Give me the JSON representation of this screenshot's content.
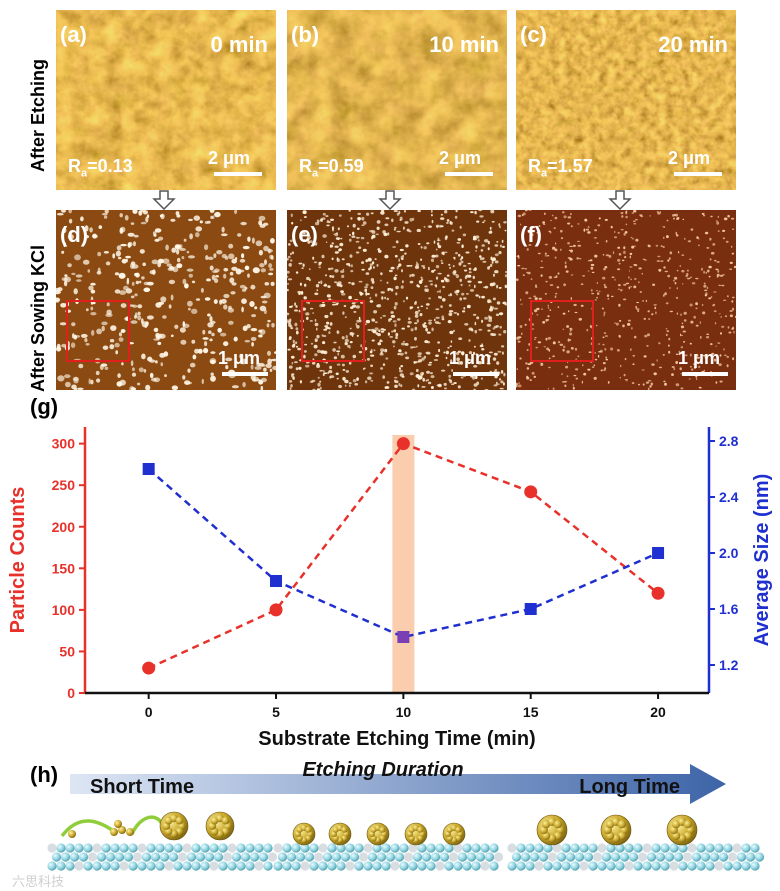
{
  "afm": {
    "row_after_etching": "After Etching",
    "row_after_sowing": "After Sowing KCl",
    "top": [
      {
        "label": "(a)",
        "time": "0 min",
        "ra": "0.13",
        "scale": "2 μm"
      },
      {
        "label": "(b)",
        "time": "10 min",
        "ra": "0.59",
        "scale": "2 μm"
      },
      {
        "label": "(c)",
        "time": "20 min",
        "ra": "1.57",
        "scale": "2 μm"
      }
    ],
    "bottom": [
      {
        "label": "(d)",
        "scale": "1 μm"
      },
      {
        "label": "(e)",
        "scale": "1 μm"
      },
      {
        "label": "(f)",
        "scale": "1 μm"
      }
    ]
  },
  "panel_g": "(g)",
  "panel_h": "(h)",
  "schematic": {
    "title": "Etching Duration",
    "left": "Short Time",
    "right": "Long Time"
  },
  "watermark": "六思科技",
  "colors": {
    "red": "#e8312a",
    "blue": "#1f2fd0",
    "highlight": "#f4a46a",
    "accent": "#7a3fb5"
  },
  "chart_data": {
    "type": "line",
    "xlabel": "Substrate Etching Time (min)",
    "x": [
      0,
      5,
      10,
      15,
      20
    ],
    "xticks": [
      0,
      5,
      10,
      15,
      20
    ],
    "xlim": [
      -2.5,
      22
    ],
    "series": [
      {
        "name": "Particle Counts",
        "axis": "left",
        "marker": "circle",
        "color": "#e8312a",
        "values": [
          30,
          100,
          300,
          242,
          120
        ]
      },
      {
        "name": "Average Size (nm)",
        "axis": "right",
        "marker": "square",
        "color": "#1f2fd0",
        "values": [
          2.6,
          1.8,
          1.4,
          1.6,
          2.0
        ]
      }
    ],
    "ylabel_left": "Particle Counts",
    "ylim_left": [
      0,
      320
    ],
    "yticks_left": [
      0,
      50,
      100,
      150,
      200,
      250,
      300
    ],
    "ylabel_right": "Average Size (nm)",
    "ylim_right": [
      1.0,
      2.9
    ],
    "yticks_right": [
      1.2,
      1.6,
      2.0,
      2.4,
      2.8
    ],
    "highlight_x": 10
  }
}
